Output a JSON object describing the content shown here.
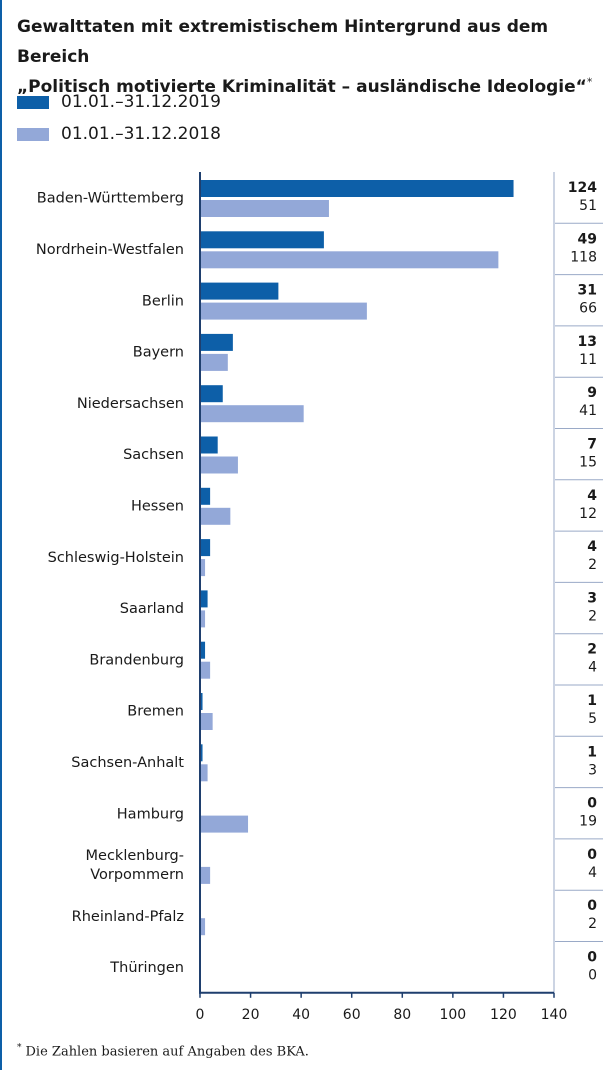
{
  "title": {
    "line1": "Gewalttaten mit extremistischem Hintergrund aus dem Bereich",
    "line2": "„Politisch motivierte Kriminalität – ausländische Ideologie“",
    "star": "*"
  },
  "footnote": {
    "star": "*",
    "text": "Die Zahlen basieren auf Angaben des BKA."
  },
  "colors": {
    "series_2019": "#0d5fa8",
    "series_2018": "#93a8d8",
    "frame": "#0d5fa8",
    "axis": "#1f3f6e",
    "separator": "#9aaac7"
  },
  "chart_data": {
    "type": "bar",
    "orientation": "horizontal",
    "categories": [
      "Baden-Württemberg",
      "Nordrhein-Westfalen",
      "Berlin",
      "Bayern",
      "Niedersachsen",
      "Sachsen",
      "Hessen",
      "Schleswig-Holstein",
      "Saarland",
      "Brandenburg",
      "Bremen",
      "Sachsen-Anhalt",
      "Hamburg",
      "Mecklenburg-\nVorpommern",
      "Rheinland-Pfalz",
      "Thüringen"
    ],
    "series": [
      {
        "name": "01.01.–31.12.2019",
        "values": [
          124,
          49,
          31,
          13,
          9,
          7,
          4,
          4,
          3,
          2,
          1,
          1,
          0,
          0,
          0,
          0
        ]
      },
      {
        "name": "01.01.–31.12.2018",
        "values": [
          51,
          118,
          66,
          11,
          41,
          15,
          12,
          2,
          2,
          4,
          5,
          3,
          19,
          4,
          2,
          0
        ]
      }
    ],
    "xlim": [
      0,
      140
    ],
    "xticks": [
      0,
      20,
      40,
      60,
      80,
      100,
      120,
      140
    ],
    "legend_position": "top-left",
    "grid": false
  }
}
